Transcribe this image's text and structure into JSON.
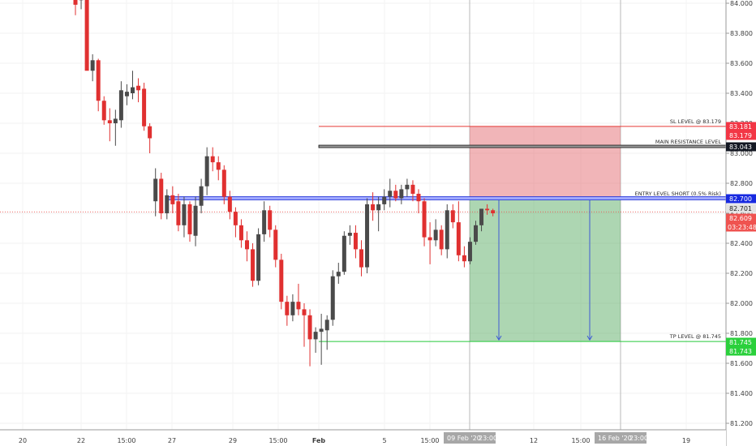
{
  "chart_data": {
    "type": "candlestick",
    "yaxis": {
      "ylim": [
        81.15,
        84.05
      ],
      "ticks": [
        "84.000",
        "83.800",
        "83.600",
        "83.400",
        "83.200",
        "83.000",
        "82.800",
        "82.600",
        "82.400",
        "82.200",
        "82.000",
        "81.800",
        "81.600",
        "81.400",
        "81.200"
      ]
    },
    "xaxis": {
      "ticks": [
        "20",
        "22",
        "15:00",
        "27",
        "29",
        "15:00",
        "Feb",
        "5",
        "15:00",
        "12",
        "15:00",
        "19"
      ],
      "highlight_labels": [
        "09 Feb '20",
        "23:00",
        "16 Feb '20",
        "23:00"
      ]
    },
    "levels": {
      "sl": {
        "label": "SL LEVEL @ 83.179",
        "value": 83.179,
        "tag": "83.179",
        "tag_top": "83.181",
        "color": "#e53935"
      },
      "resistance": {
        "label": "MAIN RESISTANCE LEVEL",
        "value": 83.043,
        "tag": "83.043",
        "color": "#1a1a1a"
      },
      "entry": {
        "label": "ENTRY LEVEL SHORT (0.5% Risk)",
        "value": 82.7,
        "tag": "82.700",
        "color": "#1e2fd6"
      },
      "last_close": {
        "tag": "82.701",
        "color": "#e0e0e0"
      },
      "current": {
        "value": 82.609,
        "tag": "82.609",
        "countdown": "03:23:48",
        "color": "#ef5350"
      },
      "tp": {
        "label": "TP LEVEL @ 81.745",
        "value": 81.745,
        "tag": "81.745",
        "tag_bottom": "81.743",
        "color": "#26c93b"
      }
    },
    "position": {
      "type": "short",
      "entry": 82.7,
      "stop": 83.179,
      "target": 81.745
    },
    "candles": [
      {
        "o": 84.06,
        "h": 84.08,
        "l": 83.92,
        "c": 83.99
      },
      {
        "o": 84.02,
        "h": 84.1,
        "l": 83.96,
        "c": 84.05
      },
      {
        "o": 84.08,
        "h": 84.09,
        "l": 83.57,
        "c": 83.55
      },
      {
        "o": 83.55,
        "h": 83.66,
        "l": 83.48,
        "c": 83.62
      },
      {
        "o": 83.62,
        "h": 83.63,
        "l": 83.28,
        "c": 83.35
      },
      {
        "o": 83.35,
        "h": 83.38,
        "l": 83.19,
        "c": 83.22
      },
      {
        "o": 83.22,
        "h": 83.3,
        "l": 83.08,
        "c": 83.2
      },
      {
        "o": 83.2,
        "h": 83.29,
        "l": 83.05,
        "c": 83.23
      },
      {
        "o": 83.22,
        "h": 83.48,
        "l": 83.17,
        "c": 83.42
      },
      {
        "o": 83.38,
        "h": 83.46,
        "l": 83.32,
        "c": 83.41
      },
      {
        "o": 83.4,
        "h": 83.55,
        "l": 83.36,
        "c": 83.44
      },
      {
        "o": 83.45,
        "h": 83.5,
        "l": 83.34,
        "c": 83.42
      },
      {
        "o": 83.43,
        "h": 83.47,
        "l": 83.15,
        "c": 83.18
      },
      {
        "o": 83.18,
        "h": 83.2,
        "l": 83.0,
        "c": 83.1
      },
      {
        "o": 82.68,
        "h": 82.9,
        "l": 82.58,
        "c": 82.83
      },
      {
        "o": 82.83,
        "h": 82.87,
        "l": 82.56,
        "c": 82.6
      },
      {
        "o": 82.6,
        "h": 82.76,
        "l": 82.56,
        "c": 82.72
      },
      {
        "o": 82.72,
        "h": 82.78,
        "l": 82.6,
        "c": 82.66
      },
      {
        "o": 82.68,
        "h": 82.73,
        "l": 82.48,
        "c": 82.52
      },
      {
        "o": 82.52,
        "h": 82.71,
        "l": 82.44,
        "c": 82.66
      },
      {
        "o": 82.66,
        "h": 82.68,
        "l": 82.41,
        "c": 82.46
      },
      {
        "o": 82.45,
        "h": 82.71,
        "l": 82.38,
        "c": 82.65
      },
      {
        "o": 82.65,
        "h": 82.83,
        "l": 82.6,
        "c": 82.78
      },
      {
        "o": 82.78,
        "h": 83.04,
        "l": 82.72,
        "c": 82.98
      },
      {
        "o": 82.98,
        "h": 83.04,
        "l": 82.88,
        "c": 82.94
      },
      {
        "o": 82.94,
        "h": 82.98,
        "l": 82.82,
        "c": 82.89
      },
      {
        "o": 82.89,
        "h": 82.92,
        "l": 82.66,
        "c": 82.71
      },
      {
        "o": 82.71,
        "h": 82.75,
        "l": 82.56,
        "c": 82.61
      },
      {
        "o": 82.61,
        "h": 82.64,
        "l": 82.44,
        "c": 82.52
      },
      {
        "o": 82.52,
        "h": 82.56,
        "l": 82.37,
        "c": 82.42
      },
      {
        "o": 82.42,
        "h": 82.48,
        "l": 82.28,
        "c": 82.36
      },
      {
        "o": 82.36,
        "h": 82.4,
        "l": 82.11,
        "c": 82.15
      },
      {
        "o": 82.15,
        "h": 82.5,
        "l": 82.12,
        "c": 82.46
      },
      {
        "o": 82.46,
        "h": 82.68,
        "l": 82.41,
        "c": 82.62
      },
      {
        "o": 82.62,
        "h": 82.65,
        "l": 82.44,
        "c": 82.49
      },
      {
        "o": 82.49,
        "h": 82.52,
        "l": 82.24,
        "c": 82.29
      },
      {
        "o": 82.29,
        "h": 82.33,
        "l": 81.96,
        "c": 82.01
      },
      {
        "o": 82.01,
        "h": 82.05,
        "l": 81.85,
        "c": 81.92
      },
      {
        "o": 81.92,
        "h": 82.06,
        "l": 81.88,
        "c": 82.01
      },
      {
        "o": 82.01,
        "h": 82.13,
        "l": 81.92,
        "c": 81.96
      },
      {
        "o": 81.96,
        "h": 82.0,
        "l": 81.71,
        "c": 81.92
      },
      {
        "o": 81.92,
        "h": 81.96,
        "l": 81.58,
        "c": 81.76
      },
      {
        "o": 81.76,
        "h": 81.84,
        "l": 81.67,
        "c": 81.81
      },
      {
        "o": 81.81,
        "h": 81.93,
        "l": 81.59,
        "c": 81.83
      },
      {
        "o": 81.82,
        "h": 81.92,
        "l": 81.69,
        "c": 81.89
      },
      {
        "o": 81.89,
        "h": 82.22,
        "l": 81.85,
        "c": 82.18
      },
      {
        "o": 82.18,
        "h": 82.27,
        "l": 82.13,
        "c": 82.21
      },
      {
        "o": 82.21,
        "h": 82.48,
        "l": 82.19,
        "c": 82.45
      },
      {
        "o": 82.45,
        "h": 82.52,
        "l": 82.39,
        "c": 82.47
      },
      {
        "o": 82.47,
        "h": 82.52,
        "l": 82.3,
        "c": 82.36
      },
      {
        "o": 82.36,
        "h": 82.42,
        "l": 82.18,
        "c": 82.24
      },
      {
        "o": 82.24,
        "h": 82.7,
        "l": 82.2,
        "c": 82.66
      },
      {
        "o": 82.66,
        "h": 82.74,
        "l": 82.55,
        "c": 82.62
      },
      {
        "o": 82.62,
        "h": 82.71,
        "l": 82.48,
        "c": 82.66
      },
      {
        "o": 82.66,
        "h": 82.76,
        "l": 82.62,
        "c": 82.71
      },
      {
        "o": 82.71,
        "h": 82.83,
        "l": 82.64,
        "c": 82.75
      },
      {
        "o": 82.75,
        "h": 82.79,
        "l": 82.68,
        "c": 82.7
      },
      {
        "o": 82.7,
        "h": 82.79,
        "l": 82.66,
        "c": 82.76
      },
      {
        "o": 82.76,
        "h": 82.83,
        "l": 82.71,
        "c": 82.79
      },
      {
        "o": 82.79,
        "h": 82.82,
        "l": 82.68,
        "c": 82.73
      },
      {
        "o": 82.73,
        "h": 82.76,
        "l": 82.6,
        "c": 82.68
      },
      {
        "o": 82.68,
        "h": 82.7,
        "l": 82.38,
        "c": 82.44
      },
      {
        "o": 82.44,
        "h": 82.54,
        "l": 82.26,
        "c": 82.42
      },
      {
        "o": 82.42,
        "h": 82.56,
        "l": 82.38,
        "c": 82.49
      },
      {
        "o": 82.49,
        "h": 82.52,
        "l": 82.32,
        "c": 82.36
      },
      {
        "o": 82.36,
        "h": 82.66,
        "l": 82.3,
        "c": 82.62
      },
      {
        "o": 82.62,
        "h": 82.66,
        "l": 82.5,
        "c": 82.54
      },
      {
        "o": 82.54,
        "h": 82.68,
        "l": 82.28,
        "c": 82.32
      },
      {
        "o": 82.32,
        "h": 82.38,
        "l": 82.24,
        "c": 82.28
      },
      {
        "o": 82.28,
        "h": 82.44,
        "l": 82.26,
        "c": 82.41
      },
      {
        "o": 82.41,
        "h": 82.55,
        "l": 82.39,
        "c": 82.52
      },
      {
        "o": 82.52,
        "h": 82.63,
        "l": 82.48,
        "c": 82.63
      },
      {
        "o": 82.63,
        "h": 82.66,
        "l": 82.59,
        "c": 82.62
      },
      {
        "o": 82.62,
        "h": 82.63,
        "l": 82.58,
        "c": 82.6
      }
    ]
  }
}
